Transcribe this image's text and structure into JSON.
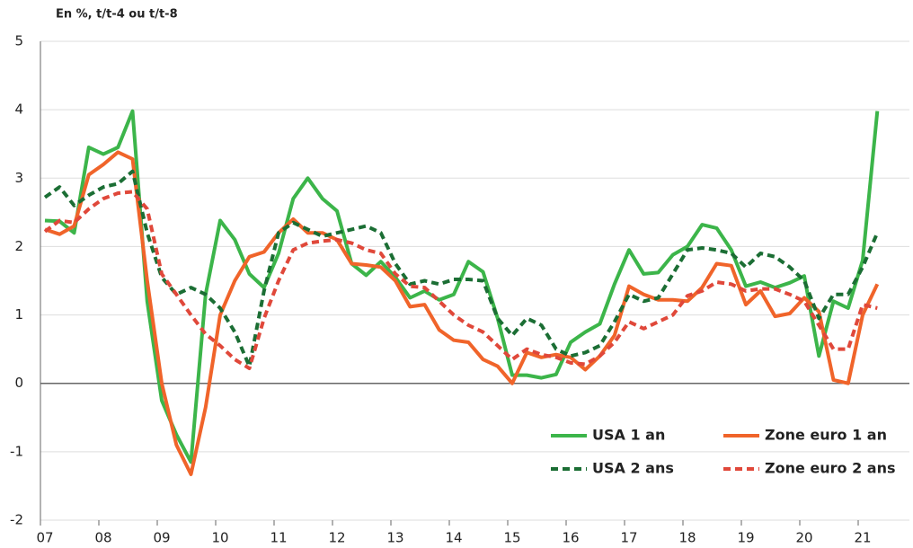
{
  "chart_data": {
    "type": "line",
    "title": "En %, t/t-4 ou t/t-8",
    "categories": [
      "07",
      null,
      null,
      null,
      "08",
      null,
      null,
      null,
      "09",
      null,
      null,
      null,
      "10",
      null,
      null,
      null,
      "11",
      null,
      null,
      null,
      "12",
      null,
      null,
      null,
      "13",
      null,
      null,
      null,
      "14",
      null,
      null,
      null,
      "15",
      null,
      null,
      null,
      "16",
      null,
      null,
      null,
      "17",
      null,
      null,
      null,
      "18",
      null,
      null,
      null,
      "19",
      null,
      null,
      null,
      "20",
      null,
      null,
      null,
      "21",
      null
    ],
    "series": [
      {
        "name": "USA 1 an",
        "color": "#3cb54a",
        "dash": false,
        "values": [
          2.38,
          2.37,
          2.2,
          3.45,
          3.35,
          3.45,
          3.98,
          1.2,
          -0.25,
          -0.75,
          -1.15,
          1.3,
          2.38,
          2.1,
          1.6,
          1.4,
          1.9,
          2.7,
          3.0,
          2.7,
          2.52,
          1.75,
          1.58,
          1.78,
          1.55,
          1.25,
          1.35,
          1.22,
          1.3,
          1.78,
          1.63,
          0.95,
          0.12,
          0.12,
          0.08,
          0.13,
          0.6,
          0.75,
          0.87,
          1.45,
          1.95,
          1.6,
          1.62,
          1.88,
          2.0,
          2.32,
          2.27,
          1.95,
          1.42,
          1.48,
          1.4,
          1.47,
          1.57,
          0.4,
          1.2,
          1.1,
          1.8,
          3.98
        ]
      },
      {
        "name": "Zone euro 1 an",
        "color": "#f0642a",
        "dash": false,
        "values": [
          2.25,
          2.18,
          2.3,
          3.05,
          3.2,
          3.38,
          3.28,
          1.5,
          0.0,
          -0.9,
          -1.33,
          -0.35,
          1.0,
          1.5,
          1.85,
          1.92,
          2.2,
          2.4,
          2.2,
          2.2,
          2.1,
          1.75,
          1.73,
          1.7,
          1.5,
          1.12,
          1.15,
          0.78,
          0.63,
          0.6,
          0.35,
          0.25,
          0.0,
          0.45,
          0.38,
          0.42,
          0.38,
          0.2,
          0.4,
          0.7,
          1.42,
          1.3,
          1.22,
          1.22,
          1.2,
          1.4,
          1.75,
          1.72,
          1.15,
          1.35,
          0.98,
          1.02,
          1.25,
          1.05,
          0.05,
          0.0,
          1.0,
          1.45
        ]
      },
      {
        "name": "USA 2 ans",
        "color": "#1b6e34",
        "dash": true,
        "values": [
          2.72,
          2.87,
          2.6,
          2.75,
          2.87,
          2.92,
          3.1,
          2.2,
          1.55,
          1.3,
          1.4,
          1.3,
          1.1,
          0.75,
          0.25,
          1.35,
          2.2,
          2.35,
          2.25,
          2.15,
          2.2,
          2.25,
          2.3,
          2.2,
          1.75,
          1.45,
          1.5,
          1.45,
          1.52,
          1.52,
          1.5,
          0.95,
          0.7,
          0.95,
          0.85,
          0.5,
          0.4,
          0.45,
          0.55,
          0.9,
          1.3,
          1.2,
          1.25,
          1.6,
          1.95,
          1.98,
          1.95,
          1.9,
          1.7,
          1.9,
          1.85,
          1.7,
          1.5,
          0.95,
          1.3,
          1.3,
          1.7,
          2.2
        ]
      },
      {
        "name": "Zone euro 2 ans",
        "color": "#e0483a",
        "dash": true,
        "values": [
          2.22,
          2.38,
          2.35,
          2.55,
          2.7,
          2.78,
          2.8,
          2.55,
          1.6,
          1.3,
          1.0,
          0.72,
          0.55,
          0.35,
          0.22,
          0.95,
          1.5,
          1.95,
          2.05,
          2.08,
          2.1,
          2.05,
          1.95,
          1.9,
          1.6,
          1.42,
          1.4,
          1.2,
          1.0,
          0.85,
          0.75,
          0.55,
          0.35,
          0.5,
          0.42,
          0.38,
          0.3,
          0.28,
          0.4,
          0.6,
          0.9,
          0.8,
          0.9,
          1.0,
          1.28,
          1.35,
          1.48,
          1.45,
          1.35,
          1.38,
          1.38,
          1.3,
          1.2,
          0.85,
          0.5,
          0.5,
          1.15,
          1.1
        ]
      }
    ],
    "ylim": [
      -2,
      5
    ],
    "yticks": [
      -2,
      -1,
      0,
      1,
      2,
      3,
      4,
      5
    ],
    "grid": true
  }
}
